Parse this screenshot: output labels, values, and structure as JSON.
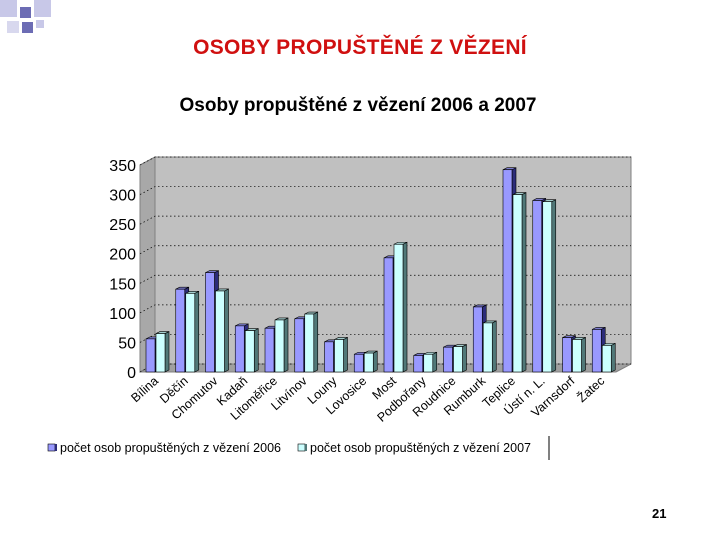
{
  "slide": {
    "title": "OSOBY PROPUŠTĚNÉ Z VĚZENÍ",
    "page_number": "21"
  },
  "chart_data": {
    "type": "bar",
    "title": "Osoby propuštěné z vězení 2006 a 2007",
    "xlabel": "",
    "ylabel": "",
    "ylim": [
      0,
      350
    ],
    "yticks": [
      "0",
      "50",
      "100",
      "150",
      "200",
      "250",
      "300",
      "350"
    ],
    "grid": true,
    "three_d": true,
    "legend_position": "bottom",
    "categories": [
      "Bílina",
      "Děčín",
      "Chomutov",
      "Kadaň",
      "Litoměřice",
      "Litvínov",
      "Louny",
      "Lovosice",
      "Most",
      "Podbořany",
      "Roudnice",
      "Rumburk",
      "Teplice",
      "Ústí n. L.",
      "Varnsdorf",
      "Žatec"
    ],
    "series": [
      {
        "name": "počet osob propuštěných z vězení 2006",
        "color": "#9999ff",
        "values": [
          56,
          140,
          168,
          78,
          74,
          90,
          51,
          30,
          193,
          28,
          42,
          110,
          342,
          290,
          58,
          72
        ]
      },
      {
        "name": "počet osob propuštěných z vězení 2007",
        "color": "#ccffff",
        "values": [
          65,
          133,
          137,
          70,
          88,
          98,
          55,
          32,
          216,
          30,
          43,
          83,
          300,
          288,
          55,
          45
        ]
      }
    ]
  }
}
